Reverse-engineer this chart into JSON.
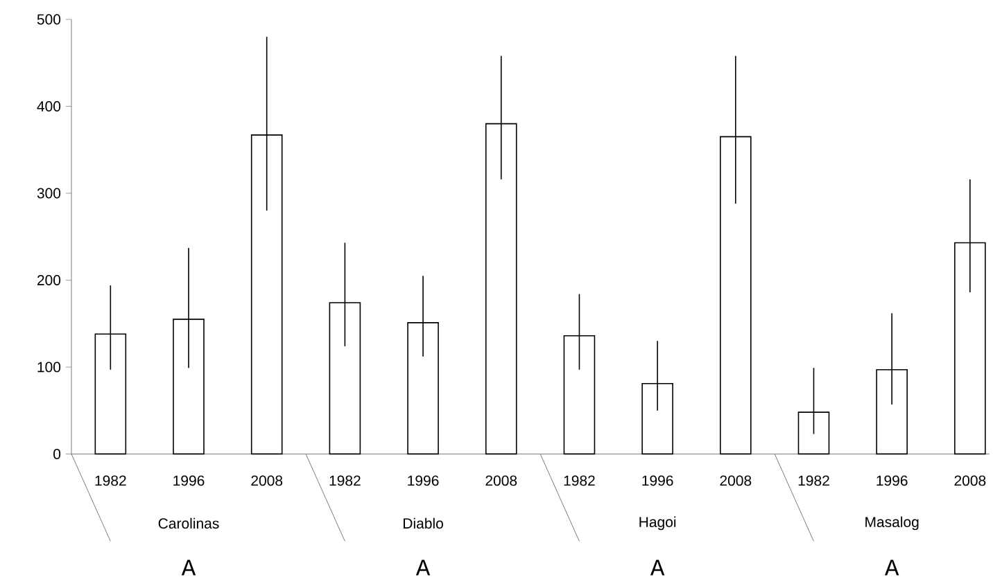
{
  "chart_data": {
    "type": "bar",
    "categories": [
      "1982",
      "1996",
      "2008",
      "1982",
      "1996",
      "2008",
      "1982",
      "1996",
      "2008",
      "1982",
      "1996",
      "2008"
    ],
    "values": [
      138,
      155,
      367,
      174,
      151,
      380,
      136,
      81,
      365,
      48,
      97,
      243
    ],
    "errors": [
      [
        97,
        194
      ],
      [
        99,
        237
      ],
      [
        280,
        480
      ],
      [
        124,
        243
      ],
      [
        112,
        205
      ],
      [
        316,
        458
      ],
      [
        97,
        184
      ],
      [
        50,
        130
      ],
      [
        288,
        458
      ],
      [
        23,
        99
      ],
      [
        57,
        162
      ],
      [
        186,
        316
      ]
    ],
    "color": "#ffffff",
    "ylim": [
      0,
      500
    ],
    "yticks": [
      0,
      100,
      200,
      300,
      400,
      500
    ],
    "annotations": [
      "Carolinas",
      "Diablo",
      "Hagoi",
      "Masalog",
      "A",
      "A",
      "A",
      "A"
    ]
  }
}
